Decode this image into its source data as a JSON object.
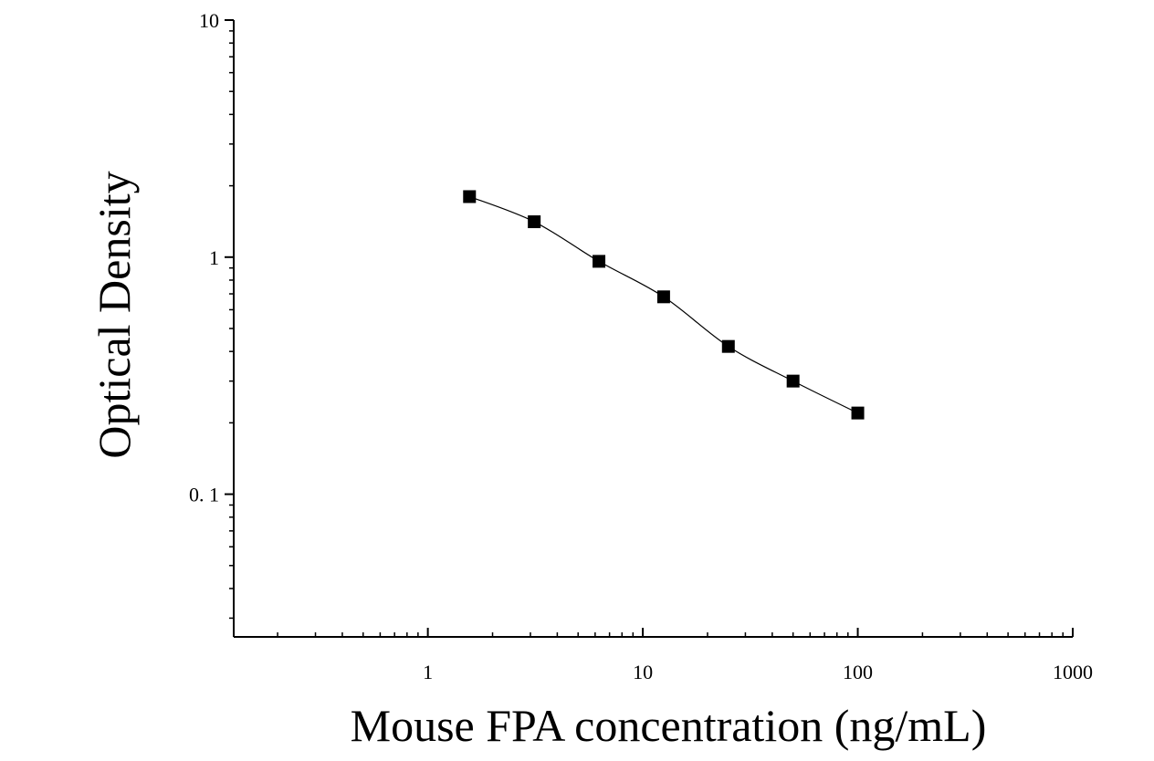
{
  "chart_data": {
    "type": "scatter",
    "xlabel": "Mouse FPA concentration (ng/mL)",
    "ylabel": "Optical Density",
    "xscale": "log",
    "yscale": "log",
    "xlim": [
      0.125,
      1000
    ],
    "ylim": [
      0.025,
      10
    ],
    "x_ticks": [
      1,
      10,
      100,
      1000
    ],
    "x_tick_labels": [
      "1",
      "10",
      "100",
      "1000"
    ],
    "y_ticks": [
      0.1,
      1,
      10
    ],
    "y_tick_labels": [
      "0. 1",
      "1",
      "10"
    ],
    "grid": false,
    "fit_curve": true,
    "marker": "square",
    "color": "#000000",
    "series": [
      {
        "x": [
          1.5625,
          3.125,
          6.25,
          12.5,
          25,
          50,
          100
        ],
        "y": [
          1.8,
          1.41,
          0.96,
          0.68,
          0.42,
          0.3,
          0.22
        ]
      }
    ]
  }
}
